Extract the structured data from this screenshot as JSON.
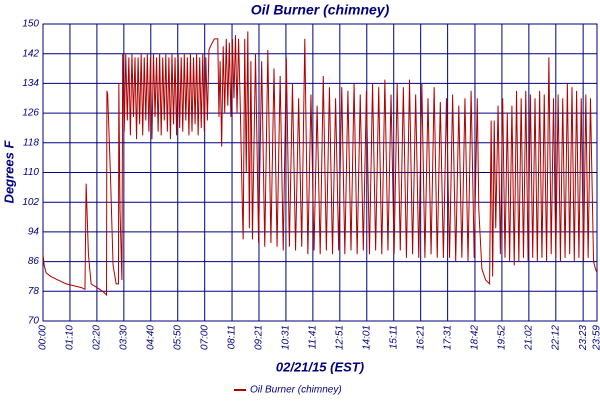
{
  "chart_data": {
    "type": "line",
    "title": "Oil Burner (chimney)",
    "x_label": "02/21/15 (EST)",
    "y_label": "Degrees F",
    "xlim": [
      0,
      1439
    ],
    "ylim": [
      70,
      150
    ],
    "yticks": [
      70,
      78,
      86,
      94,
      102,
      110,
      118,
      126,
      134,
      142,
      150
    ],
    "xticks": [
      {
        "value": 0,
        "label": "00:00"
      },
      {
        "value": 70,
        "label": "01:10"
      },
      {
        "value": 140,
        "label": "02:20"
      },
      {
        "value": 210,
        "label": "03:30"
      },
      {
        "value": 280,
        "label": "04:40"
      },
      {
        "value": 350,
        "label": "05:50"
      },
      {
        "value": 420,
        "label": "07:00"
      },
      {
        "value": 491,
        "label": "08:11"
      },
      {
        "value": 561,
        "label": "09:21"
      },
      {
        "value": 631,
        "label": "10:31"
      },
      {
        "value": 701,
        "label": "11:41"
      },
      {
        "value": 771,
        "label": "12:51"
      },
      {
        "value": 841,
        "label": "14:01"
      },
      {
        "value": 911,
        "label": "15:11"
      },
      {
        "value": 981,
        "label": "16:21"
      },
      {
        "value": 1051,
        "label": "17:31"
      },
      {
        "value": 1122,
        "label": "18:42"
      },
      {
        "value": 1192,
        "label": "19:52"
      },
      {
        "value": 1262,
        "label": "21:02"
      },
      {
        "value": 1332,
        "label": "22:12"
      },
      {
        "value": 1403,
        "label": "23:23"
      },
      {
        "value": 1439,
        "label": "23:59"
      }
    ],
    "grid": true,
    "legend": "bottom",
    "x": [
      0,
      3,
      8,
      20,
      40,
      60,
      80,
      100,
      109,
      112,
      118,
      125,
      140,
      155,
      165,
      166,
      168,
      175,
      182,
      190,
      196,
      197,
      200,
      205,
      207,
      211,
      215,
      219,
      223,
      227,
      231,
      235,
      239,
      243,
      247,
      251,
      255,
      259,
      263,
      267,
      271,
      275,
      279,
      283,
      287,
      291,
      295,
      299,
      303,
      307,
      311,
      315,
      319,
      323,
      327,
      331,
      335,
      339,
      343,
      347,
      351,
      355,
      359,
      363,
      367,
      371,
      375,
      379,
      383,
      387,
      391,
      395,
      399,
      403,
      407,
      411,
      415,
      419,
      423,
      427,
      431,
      435,
      440,
      445,
      450,
      454,
      457,
      460,
      464,
      468,
      472,
      476,
      480,
      484,
      488,
      492,
      496,
      500,
      504,
      508,
      512,
      514,
      518,
      520,
      524,
      528,
      532,
      536,
      540,
      544,
      552,
      560,
      568,
      576,
      584,
      592,
      600,
      608,
      616,
      624,
      632,
      640,
      648,
      656,
      664,
      672,
      680,
      688,
      696,
      704,
      712,
      720,
      728,
      736,
      744,
      752,
      760,
      768,
      776,
      784,
      792,
      800,
      808,
      816,
      824,
      832,
      840,
      848,
      856,
      864,
      872,
      880,
      888,
      896,
      904,
      912,
      920,
      928,
      936,
      944,
      952,
      960,
      968,
      976,
      984,
      992,
      1000,
      1008,
      1016,
      1024,
      1032,
      1040,
      1048,
      1056,
      1064,
      1072,
      1080,
      1088,
      1096,
      1104,
      1112,
      1120,
      1128,
      1132,
      1140,
      1150,
      1160,
      1164,
      1168,
      1172,
      1176,
      1182,
      1188,
      1194,
      1200,
      1206,
      1212,
      1218,
      1224,
      1230,
      1236,
      1242,
      1248,
      1254,
      1260,
      1266,
      1272,
      1278,
      1284,
      1290,
      1296,
      1302,
      1308,
      1314,
      1320,
      1326,
      1332,
      1338,
      1344,
      1350,
      1356,
      1362,
      1368,
      1374,
      1380,
      1386,
      1392,
      1398,
      1404,
      1410,
      1416,
      1422,
      1430,
      1435,
      1439
    ],
    "series": [
      {
        "name": "Oil Burner (chimney)",
        "color": "#b00000",
        "values": [
          88,
          85,
          83,
          82,
          81,
          80,
          79.5,
          79,
          78.5,
          107,
          88,
          80,
          79,
          78,
          77,
          132,
          131,
          110,
          85,
          80,
          80,
          134,
          100,
          81,
          142,
          121,
          142,
          124,
          141,
          120,
          142,
          125,
          141,
          119,
          141,
          123,
          142,
          120,
          141,
          124,
          142,
          121,
          141,
          119,
          142,
          125,
          141,
          121,
          142,
          120,
          141,
          124,
          142,
          121,
          141,
          119,
          142,
          123,
          141,
          120,
          142,
          122,
          141,
          121,
          142,
          124,
          141,
          120,
          142,
          121,
          141,
          123,
          142,
          120,
          141,
          122,
          142,
          121,
          141,
          124,
          143,
          144,
          145,
          146,
          146,
          146,
          125,
          140,
          117,
          144,
          126,
          146,
          128,
          145,
          125,
          146,
          130,
          147,
          126,
          146,
          130,
          120,
          100,
          92,
          146,
          110,
          148,
          95,
          140,
          92,
          142,
          91,
          140,
          90,
          143,
          91,
          138,
          90,
          136,
          89,
          141,
          90,
          134,
          89,
          130,
          90,
          146,
          88,
          131,
          89,
          128,
          88,
          136,
          89,
          133,
          88,
          130,
          89,
          133,
          88,
          132,
          89,
          134,
          88,
          131,
          89,
          132,
          88,
          134,
          89,
          133,
          88,
          135,
          89,
          131,
          88,
          134,
          89,
          133,
          87,
          135,
          88,
          131,
          87,
          134,
          87,
          130,
          88,
          133,
          87,
          129,
          87,
          130,
          87,
          131,
          86,
          128,
          87,
          130,
          86,
          132,
          87,
          130,
          100,
          84,
          81,
          80,
          124,
          82,
          124,
          95,
          128,
          88,
          130,
          87,
          126,
          86,
          128,
          85,
          132,
          86,
          130,
          87,
          132,
          86,
          131,
          87,
          130,
          86,
          132,
          87,
          131,
          86,
          141,
          88,
          130,
          87,
          131,
          86,
          130,
          87,
          134,
          88,
          133,
          86,
          132,
          87,
          130,
          86,
          131,
          87,
          130,
          86,
          84,
          83
        ]
      }
    ]
  }
}
